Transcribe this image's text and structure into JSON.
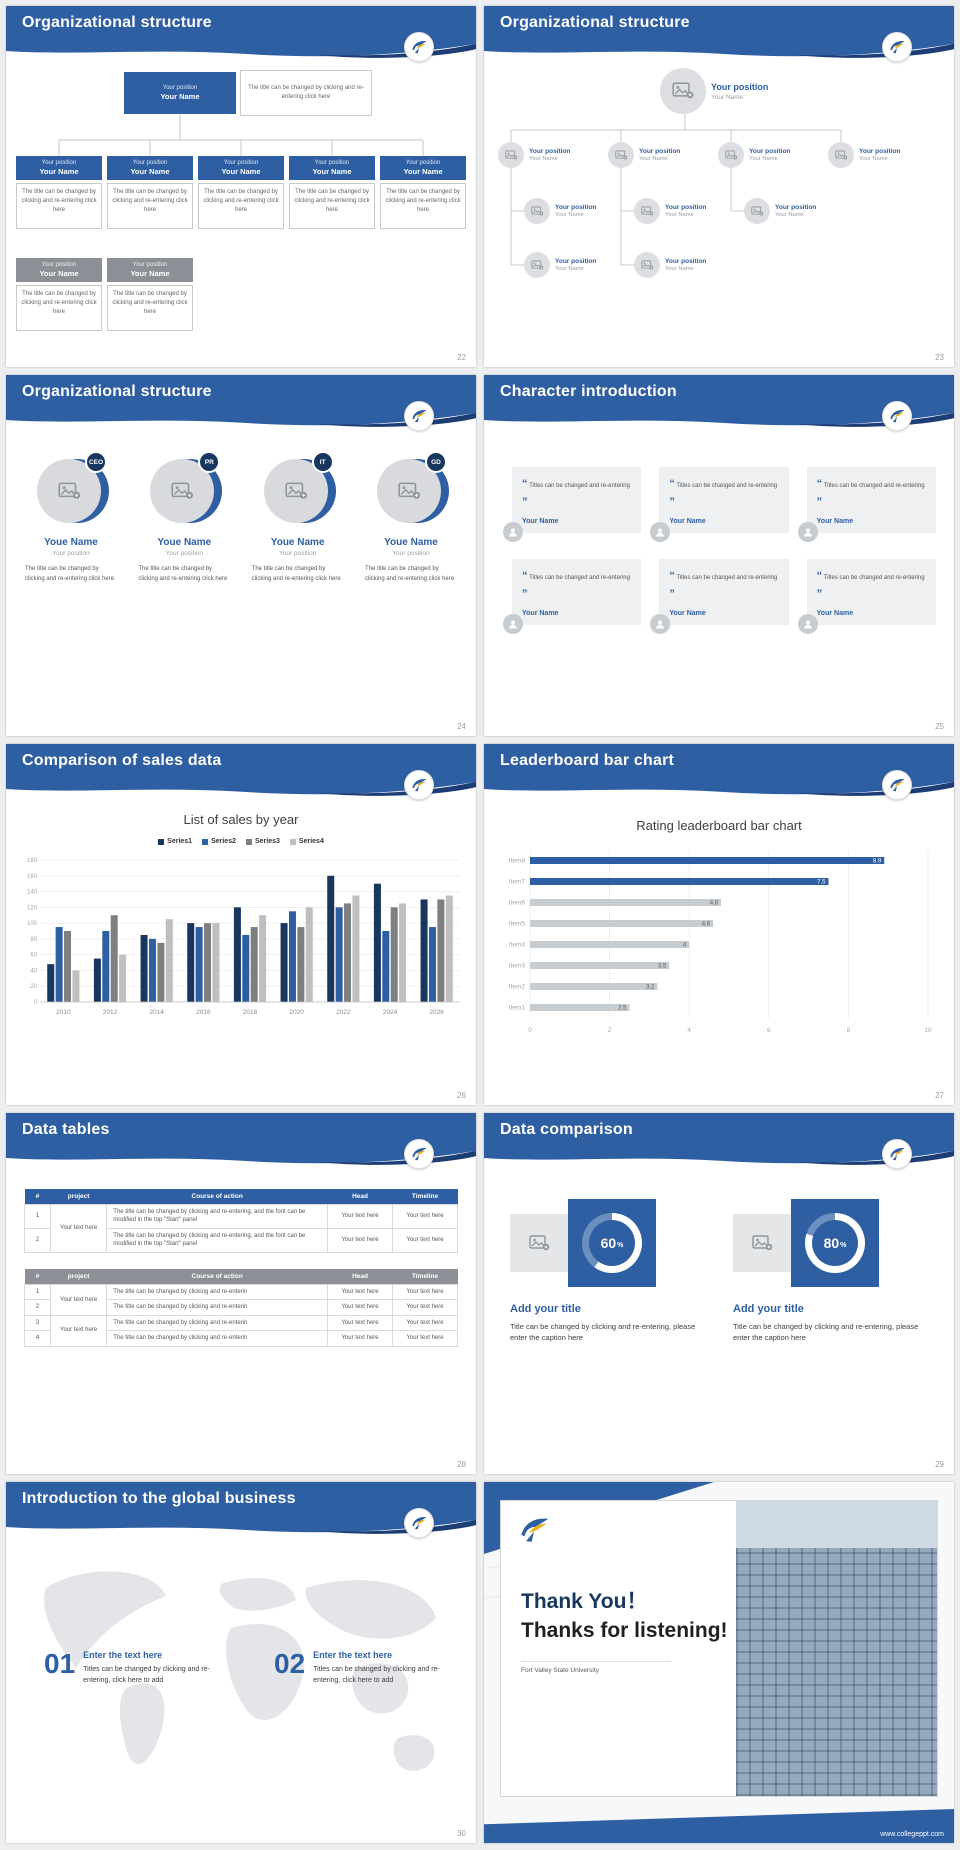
{
  "colors": {
    "header_blue": "#2e5fa3",
    "header_dark": "#1d3d76",
    "gray_box": "#8c9096",
    "badge_navy": "#17375e"
  },
  "slides": {
    "s22": {
      "title": "Organizational structure",
      "page": "22",
      "root": {
        "position": "Your position",
        "name": "Your Name"
      },
      "root_note": "The title can be changed by clicking and re-entering click here",
      "level2": [
        {
          "position": "Your position",
          "name": "Your Name",
          "note": "The title can be changed by clicking and re-entering click here"
        },
        {
          "position": "Your position",
          "name": "Your Name",
          "note": "The title can be changed by clicking and re-entering click here"
        },
        {
          "position": "Your position",
          "name": "Your Name",
          "note": "The title can be changed by clicking and re-entering click here"
        },
        {
          "position": "Your position",
          "name": "Your Name",
          "note": "The title can be changed by clicking and re-entering click here"
        },
        {
          "position": "Your position",
          "name": "Your Name",
          "note": "The title can be changed by clicking and re-entering click here"
        }
      ],
      "level3": [
        {
          "position": "Your position",
          "name": "Your Name",
          "note": "The title can be changed by clicking and re-entering click here"
        },
        {
          "position": "Your position",
          "name": "Your Name",
          "note": "The title can be changed by clicking and re-entering click here"
        }
      ]
    },
    "s23": {
      "title": "Organizational structure",
      "page": "23",
      "root": {
        "position": "Your position",
        "name": "Your Name"
      },
      "row2": [
        {
          "position": "Your position",
          "name": "Your Name"
        },
        {
          "position": "Your position",
          "name": "Your Name"
        },
        {
          "position": "Your position",
          "name": "Your Name"
        },
        {
          "position": "Your position",
          "name": "Your Name"
        }
      ],
      "row3": [
        {
          "position": "Your position",
          "name": "Your Name"
        },
        {
          "position": "Your position",
          "name": "Your Name"
        },
        {
          "position": "Your position",
          "name": "Your Name"
        }
      ],
      "row4": [
        {
          "position": "Your position",
          "name": "Your Name"
        },
        {
          "position": "Your position",
          "name": "Your Name"
        }
      ]
    },
    "s24": {
      "title": "Organizational structure",
      "page": "24",
      "members": [
        {
          "badge": "CEO",
          "name": "Youe Name",
          "position": "Your position",
          "note": "The title can be changed by clicking and re-entering click here"
        },
        {
          "badge": "PR",
          "name": "Youe Name",
          "position": "Your position",
          "note": "The title can be changed by clicking and re-entering click here"
        },
        {
          "badge": "IT",
          "name": "Youe Name",
          "position": "Your position",
          "note": "The title can be changed by clicking and re-entering click here"
        },
        {
          "badge": "GD",
          "name": "Youe Name",
          "position": "Your position",
          "note": "The title can be changed by clicking and re-entering click here"
        }
      ]
    },
    "s25": {
      "title": "Character introduction",
      "page": "25",
      "quote_open": "“",
      "quote_close": "”",
      "cards": [
        {
          "quote": "Titles can be changed and re-entering",
          "name": "Your Name"
        },
        {
          "quote": "Titles can be changed and re-entering",
          "name": "Your Name"
        },
        {
          "quote": "Titles can be changed and re-entering",
          "name": "Your Name"
        },
        {
          "quote": "Titles can be changed and re-entering",
          "name": "Your Name"
        },
        {
          "quote": "Titles can be changed and re-entering",
          "name": "Your Name"
        },
        {
          "quote": "Titles can be changed and re-entering",
          "name": "Your Name"
        }
      ]
    },
    "s26": {
      "title": "Comparison of sales data",
      "page": "26",
      "chart_title": "List of sales by year"
    },
    "s27": {
      "title": "Leaderboard bar chart",
      "page": "27",
      "chart_title": "Rating leaderboard bar chart"
    },
    "s28": {
      "title": "Data tables",
      "page": "28",
      "table1": {
        "headers": [
          "#",
          "project",
          "Course of action",
          "Head",
          "Timeline"
        ],
        "project_label": "Your text here",
        "rows": [
          {
            "num": "1",
            "course": "The title can be changed by clicking and re-entering, and the font can be modified in the top \"Start\" panel",
            "head": "Your text here",
            "timeline": "Your text here"
          },
          {
            "num": "2",
            "course": "The title can be changed by clicking and re-entering, and the font can be modified in the top \"Start\" panel",
            "head": "Your text here",
            "timeline": "Your text here"
          }
        ]
      },
      "table2": {
        "headers": [
          "#",
          "project",
          "Course of action",
          "Head",
          "Timeline"
        ],
        "project_label": "Your text here",
        "rows": [
          {
            "num": "1",
            "course": "The title can be changed by clicking and re-enterin",
            "head": "Your text here",
            "timeline": "Your text here"
          },
          {
            "num": "2",
            "course": "The title can be changed by clicking and re-enterin",
            "head": "Your text here",
            "timeline": "Your text here"
          },
          {
            "num": "3",
            "course": "The title can be changed by clicking and re-enterin",
            "head": "Your text here",
            "timeline": "Your text here"
          },
          {
            "num": "4",
            "course": "The title can be changed by clicking and re-enterin",
            "head": "Your text here",
            "timeline": "Your text here"
          }
        ]
      }
    },
    "s29": {
      "title": "Data comparison",
      "page": "29",
      "panels": [
        {
          "percent": 60,
          "percent_label": "60",
          "percent_suffix": "%",
          "title": "Add your title",
          "caption": "Title can be changed by clicking and re-entering, please enter the caption here"
        },
        {
          "percent": 80,
          "percent_label": "80",
          "percent_suffix": "%",
          "title": "Add your title",
          "caption": "Title can be changed by clicking and re-entering, please enter the caption here"
        }
      ]
    },
    "s30": {
      "title": "Introduction to the global business",
      "page": "30",
      "items": [
        {
          "num": "01",
          "heading": "Enter the text here",
          "text": "Titles can be changed by clicking and re-entering, click here to add"
        },
        {
          "num": "02",
          "heading": "Enter the text here",
          "text": "Titles can be changed by clicking and re-entering, click here to add"
        }
      ]
    },
    "s31": {
      "thank_you": "Thank You！",
      "subtitle": "Thanks for listening!",
      "university": "Fort Valley State University",
      "website": "www.collegeppt.com"
    }
  },
  "chart_data": [
    {
      "type": "bar",
      "title": "List of sales by year",
      "categories": [
        "2010",
        "2012",
        "2014",
        "2016",
        "2018",
        "2020",
        "2022",
        "2024",
        "2026"
      ],
      "series": [
        {
          "name": "Series1",
          "color": "#17375e",
          "values": [
            48,
            55,
            85,
            100,
            120,
            100,
            160,
            150,
            130
          ]
        },
        {
          "name": "Series2",
          "color": "#2e5fa3",
          "values": [
            95,
            90,
            80,
            95,
            85,
            115,
            120,
            90,
            95
          ]
        },
        {
          "name": "Series3",
          "color": "#7f7f7f",
          "values": [
            90,
            110,
            75,
            100,
            95,
            95,
            125,
            120,
            130
          ]
        },
        {
          "name": "Series4",
          "color": "#bfbfbf",
          "values": [
            40,
            60,
            105,
            100,
            110,
            120,
            135,
            125,
            135
          ]
        }
      ],
      "xlabel": "",
      "ylabel": "",
      "ylim": [
        0,
        180
      ],
      "ytick_step": 20,
      "legend_position": "top",
      "grid": true
    },
    {
      "type": "bar",
      "orientation": "horizontal",
      "title": "Rating leaderboard bar chart",
      "categories": [
        "Item8",
        "Item7",
        "Item6",
        "Item5",
        "Item4",
        "Item3",
        "Item2",
        "Item1"
      ],
      "values": [
        8.9,
        7.5,
        4.8,
        4.6,
        4,
        3.5,
        3.2,
        2.5
      ],
      "bar_colors": [
        "#2e5fa3",
        "#2e5fa3",
        "#c7ccd1",
        "#c7ccd1",
        "#c7ccd1",
        "#c7ccd1",
        "#c7ccd1",
        "#c7ccd1"
      ],
      "highlight_color": "#2e5fa3",
      "xlim": [
        0,
        10
      ],
      "xtick_step": 2,
      "grid": true
    }
  ]
}
